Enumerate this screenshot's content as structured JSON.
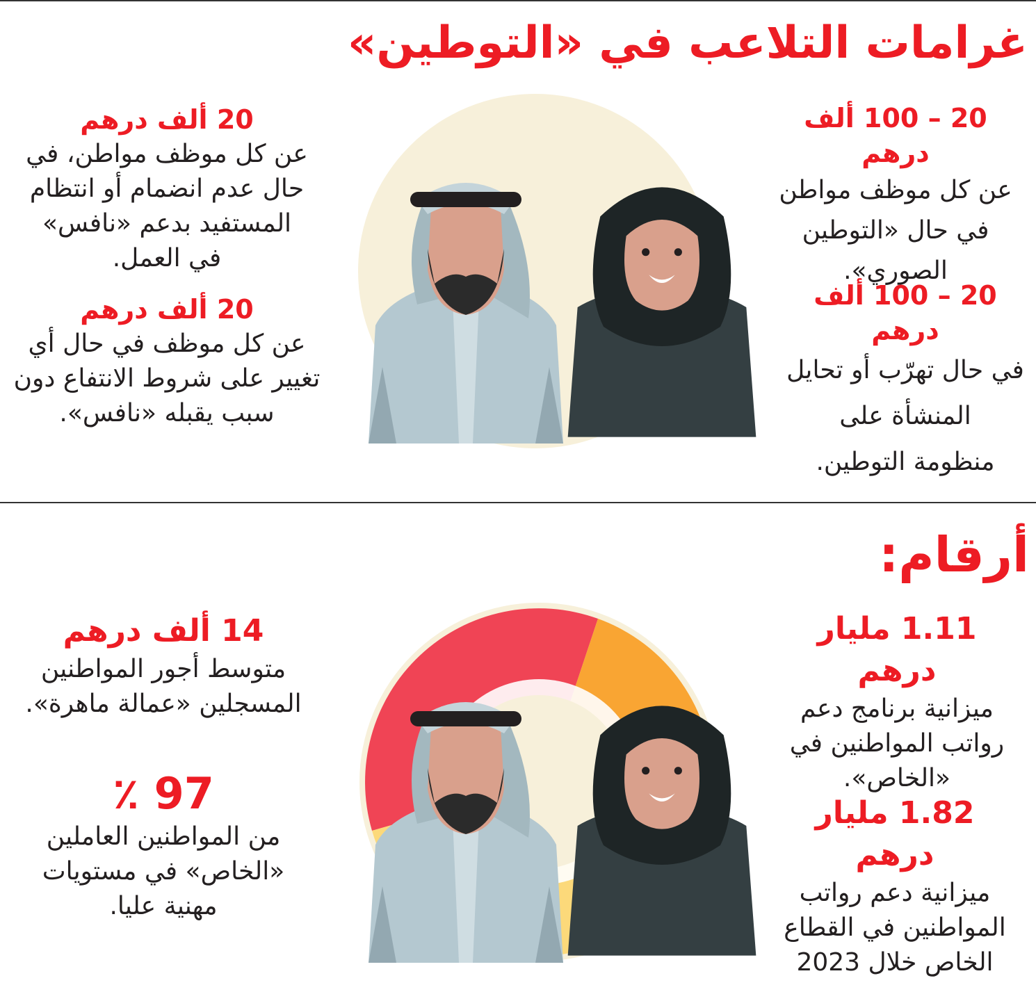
{
  "section1": {
    "title": "غرامات التلاعب في «التوطين»",
    "right": [
      {
        "amount": "20 – 100 ألف درهم",
        "lines": [
          "عن كل موظف مواطن",
          "في حال «التوطين",
          "الصوري»."
        ]
      },
      {
        "amount": "20 – 100 ألف درهم",
        "lines": [
          "في حال تهرّب أو تحايل",
          "المنشأة على",
          "منظومة التوطين."
        ]
      }
    ],
    "left": [
      {
        "amount": "20 ألف درهم",
        "lines": [
          "عن كل موظف مواطن، في",
          "حال عدم انضمام أو انتظام",
          "المستفيد بدعم «نافس»",
          "في العمل."
        ]
      },
      {
        "amount": "20 ألف درهم",
        "lines": [
          "عن كل موظف في حال أي",
          "تغيير على شروط الانتفاع دون",
          "سبب يقبله «نافس»."
        ]
      }
    ]
  },
  "section2": {
    "title": "أرقام:",
    "right": [
      {
        "amount": "1.11 مليار درهم",
        "lines": [
          "ميزانية برنامج دعم",
          "رواتب المواطنين في",
          "«الخاص»."
        ]
      },
      {
        "amount": "1.82 مليار درهم",
        "lines": [
          "ميزانية دعم رواتب",
          "المواطنين في القطاع",
          "الخاص خلال 2023"
        ]
      }
    ],
    "left": [
      {
        "amount": "14 ألف درهم",
        "lines": [
          "متوسط أجور المواطنين",
          "المسجلين «عمالة ماهرة»."
        ]
      },
      {
        "amount": "97 ٪",
        "lines": [
          "من المواطنين العاملين",
          "«الخاص» في مستويات",
          "مهنية عليا."
        ]
      }
    ]
  },
  "colors": {
    "accent": "#ed1c24",
    "text": "#231f20",
    "cream": "#f7f0da",
    "donut_red": "#f04455",
    "donut_orange": "#f9a533",
    "donut_yellow": "#fcd97a"
  },
  "icons": [
    "emirati-man-illustration",
    "emirati-woman-illustration",
    "donut-ring-decoration"
  ]
}
